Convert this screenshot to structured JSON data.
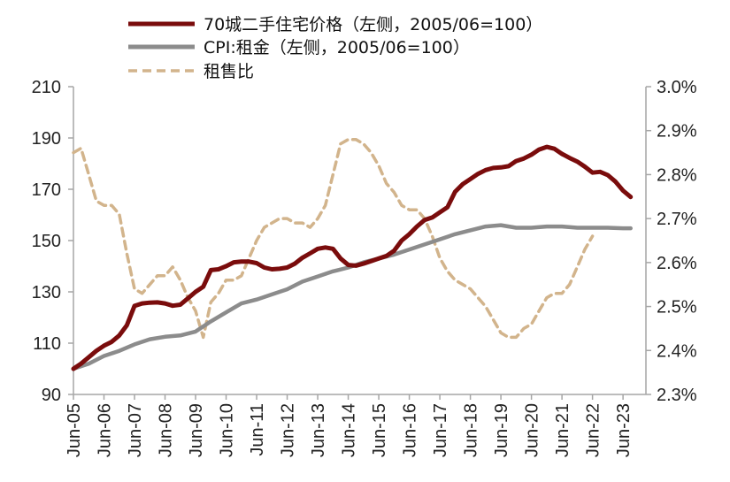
{
  "chart_data": {
    "type": "line",
    "legend": {
      "placement": "top",
      "entries": [
        {
          "key": "price",
          "label": "70城二手住宅价格（左侧，2005/06=100）",
          "color": "#7a0c0c",
          "style": "solid"
        },
        {
          "key": "cpi_rent",
          "label": "CPI:租金（左侧，2005/06=100）",
          "color": "#8c8c8c",
          "style": "solid"
        },
        {
          "key": "ratio",
          "label": "租售比",
          "color": "#d2b48c",
          "style": "dashed"
        }
      ]
    },
    "x": {
      "start": "2005-06",
      "end": "2024-03",
      "tick_labels": [
        "Jun-05",
        "Jun-06",
        "Jun-07",
        "Jun-08",
        "Jun-09",
        "Jun-10",
        "Jun-11",
        "Jun-12",
        "Jun-13",
        "Jun-14",
        "Jun-15",
        "Jun-16",
        "Jun-17",
        "Jun-18",
        "Jun-19",
        "Jun-20",
        "Jun-21",
        "Jun-22",
        "Jun-23"
      ]
    },
    "y_left": {
      "min": 90,
      "max": 210,
      "ticks": [
        90,
        110,
        130,
        150,
        170,
        190,
        210
      ]
    },
    "y_right": {
      "min": 2.3,
      "max": 3.0,
      "ticks": [
        2.3,
        2.4,
        2.5,
        2.6,
        2.7,
        2.8,
        2.9,
        3.0
      ],
      "tick_labels": [
        "2.3%",
        "2.4%",
        "2.5%",
        "2.6%",
        "2.7%",
        "2.8%",
        "2.9%",
        "3.0%"
      ]
    },
    "series": [
      {
        "key": "price",
        "axis": "left",
        "points": [
          [
            2005.5,
            100
          ],
          [
            2005.75,
            102
          ],
          [
            2006.0,
            104.5
          ],
          [
            2006.25,
            107
          ],
          [
            2006.5,
            109
          ],
          [
            2006.75,
            110.5
          ],
          [
            2007.0,
            113
          ],
          [
            2007.25,
            117
          ],
          [
            2007.5,
            124.5
          ],
          [
            2007.75,
            125.5
          ],
          [
            2008.0,
            125.8
          ],
          [
            2008.25,
            125.9
          ],
          [
            2008.5,
            125.5
          ],
          [
            2008.75,
            124.6
          ],
          [
            2009.0,
            125
          ],
          [
            2009.25,
            127.5
          ],
          [
            2009.5,
            130
          ],
          [
            2009.75,
            132
          ],
          [
            2010.0,
            138.5
          ],
          [
            2010.25,
            138.8
          ],
          [
            2010.5,
            140
          ],
          [
            2010.75,
            141.5
          ],
          [
            2011.0,
            141.8
          ],
          [
            2011.25,
            141.8
          ],
          [
            2011.5,
            141.2
          ],
          [
            2011.75,
            139.5
          ],
          [
            2012.0,
            138.8
          ],
          [
            2012.25,
            139
          ],
          [
            2012.5,
            139.5
          ],
          [
            2012.75,
            141
          ],
          [
            2013.0,
            143.3
          ],
          [
            2013.25,
            145
          ],
          [
            2013.5,
            146.8
          ],
          [
            2013.75,
            147.3
          ],
          [
            2014.0,
            146.8
          ],
          [
            2014.25,
            143
          ],
          [
            2014.5,
            140.5
          ],
          [
            2014.75,
            140.2
          ],
          [
            2015.0,
            141
          ],
          [
            2015.25,
            142
          ],
          [
            2015.5,
            143
          ],
          [
            2015.75,
            144
          ],
          [
            2016.0,
            146
          ],
          [
            2016.25,
            150
          ],
          [
            2016.5,
            152.5
          ],
          [
            2016.75,
            155.5
          ],
          [
            2017.0,
            158
          ],
          [
            2017.25,
            159
          ],
          [
            2017.5,
            161
          ],
          [
            2017.75,
            163
          ],
          [
            2018.0,
            169
          ],
          [
            2018.25,
            172
          ],
          [
            2018.5,
            174
          ],
          [
            2018.75,
            176
          ],
          [
            2019.0,
            177.5
          ],
          [
            2019.25,
            178.3
          ],
          [
            2019.5,
            178.5
          ],
          [
            2019.75,
            179
          ],
          [
            2020.0,
            181
          ],
          [
            2020.25,
            182
          ],
          [
            2020.5,
            183.5
          ],
          [
            2020.75,
            185.5
          ],
          [
            2021.0,
            186.5
          ],
          [
            2021.25,
            185.8
          ],
          [
            2021.5,
            183.8
          ],
          [
            2021.75,
            182.2
          ],
          [
            2022.0,
            180.8
          ],
          [
            2022.25,
            178.8
          ],
          [
            2022.5,
            176.5
          ],
          [
            2022.75,
            176.8
          ],
          [
            2023.0,
            175.5
          ],
          [
            2023.25,
            173
          ],
          [
            2023.5,
            169.5
          ],
          [
            2023.75,
            167
          ]
        ]
      },
      {
        "key": "cpi_rent",
        "axis": "left",
        "points": [
          [
            2005.5,
            100
          ],
          [
            2006.0,
            102
          ],
          [
            2006.5,
            105
          ],
          [
            2007.0,
            107
          ],
          [
            2007.5,
            109.5
          ],
          [
            2008.0,
            111.5
          ],
          [
            2008.5,
            112.5
          ],
          [
            2009.0,
            113
          ],
          [
            2009.5,
            114.5
          ],
          [
            2010.0,
            118.5
          ],
          [
            2010.5,
            122
          ],
          [
            2011.0,
            125.5
          ],
          [
            2011.5,
            127
          ],
          [
            2012.0,
            129
          ],
          [
            2012.5,
            131
          ],
          [
            2013.0,
            134
          ],
          [
            2013.5,
            136
          ],
          [
            2014.0,
            138
          ],
          [
            2014.5,
            139.5
          ],
          [
            2015.0,
            141.5
          ],
          [
            2015.5,
            143
          ],
          [
            2016.0,
            144.5
          ],
          [
            2016.5,
            146.5
          ],
          [
            2017.0,
            148.5
          ],
          [
            2017.5,
            150.5
          ],
          [
            2018.0,
            152.5
          ],
          [
            2018.5,
            154
          ],
          [
            2019.0,
            155.5
          ],
          [
            2019.5,
            156
          ],
          [
            2020.0,
            155
          ],
          [
            2020.5,
            155
          ],
          [
            2021.0,
            155.5
          ],
          [
            2021.5,
            155.5
          ],
          [
            2022.0,
            155
          ],
          [
            2022.5,
            155
          ],
          [
            2023.0,
            155
          ],
          [
            2023.5,
            154.8
          ],
          [
            2023.75,
            154.8
          ]
        ]
      },
      {
        "key": "ratio",
        "axis": "right",
        "points": [
          [
            2005.5,
            2.85
          ],
          [
            2005.75,
            2.86
          ],
          [
            2006.0,
            2.8
          ],
          [
            2006.25,
            2.74
          ],
          [
            2006.5,
            2.73
          ],
          [
            2006.75,
            2.73
          ],
          [
            2007.0,
            2.71
          ],
          [
            2007.25,
            2.62
          ],
          [
            2007.5,
            2.54
          ],
          [
            2007.75,
            2.53
          ],
          [
            2008.0,
            2.55
          ],
          [
            2008.25,
            2.57
          ],
          [
            2008.5,
            2.57
          ],
          [
            2008.75,
            2.59
          ],
          [
            2009.0,
            2.56
          ],
          [
            2009.25,
            2.52
          ],
          [
            2009.5,
            2.49
          ],
          [
            2009.75,
            2.43
          ],
          [
            2010.0,
            2.51
          ],
          [
            2010.25,
            2.53
          ],
          [
            2010.5,
            2.56
          ],
          [
            2010.75,
            2.56
          ],
          [
            2011.0,
            2.57
          ],
          [
            2011.25,
            2.61
          ],
          [
            2011.5,
            2.65
          ],
          [
            2011.75,
            2.68
          ],
          [
            2012.0,
            2.69
          ],
          [
            2012.25,
            2.7
          ],
          [
            2012.5,
            2.7
          ],
          [
            2012.75,
            2.69
          ],
          [
            2013.0,
            2.69
          ],
          [
            2013.25,
            2.68
          ],
          [
            2013.5,
            2.7
          ],
          [
            2013.75,
            2.73
          ],
          [
            2014.0,
            2.8
          ],
          [
            2014.25,
            2.87
          ],
          [
            2014.5,
            2.88
          ],
          [
            2014.75,
            2.88
          ],
          [
            2015.0,
            2.87
          ],
          [
            2015.25,
            2.85
          ],
          [
            2015.5,
            2.82
          ],
          [
            2015.75,
            2.78
          ],
          [
            2016.0,
            2.76
          ],
          [
            2016.25,
            2.73
          ],
          [
            2016.5,
            2.72
          ],
          [
            2016.75,
            2.72
          ],
          [
            2017.0,
            2.7
          ],
          [
            2017.25,
            2.66
          ],
          [
            2017.5,
            2.61
          ],
          [
            2017.75,
            2.58
          ],
          [
            2018.0,
            2.56
          ],
          [
            2018.25,
            2.55
          ],
          [
            2018.5,
            2.54
          ],
          [
            2018.75,
            2.52
          ],
          [
            2019.0,
            2.5
          ],
          [
            2019.25,
            2.47
          ],
          [
            2019.5,
            2.44
          ],
          [
            2019.75,
            2.43
          ],
          [
            2020.0,
            2.43
          ],
          [
            2020.25,
            2.45
          ],
          [
            2020.5,
            2.46
          ],
          [
            2020.75,
            2.49
          ],
          [
            2021.0,
            2.52
          ],
          [
            2021.25,
            2.53
          ],
          [
            2021.5,
            2.53
          ],
          [
            2021.75,
            2.55
          ],
          [
            2022.0,
            2.59
          ],
          [
            2022.25,
            2.63
          ],
          [
            2022.5,
            2.66
          ]
        ]
      }
    ]
  }
}
